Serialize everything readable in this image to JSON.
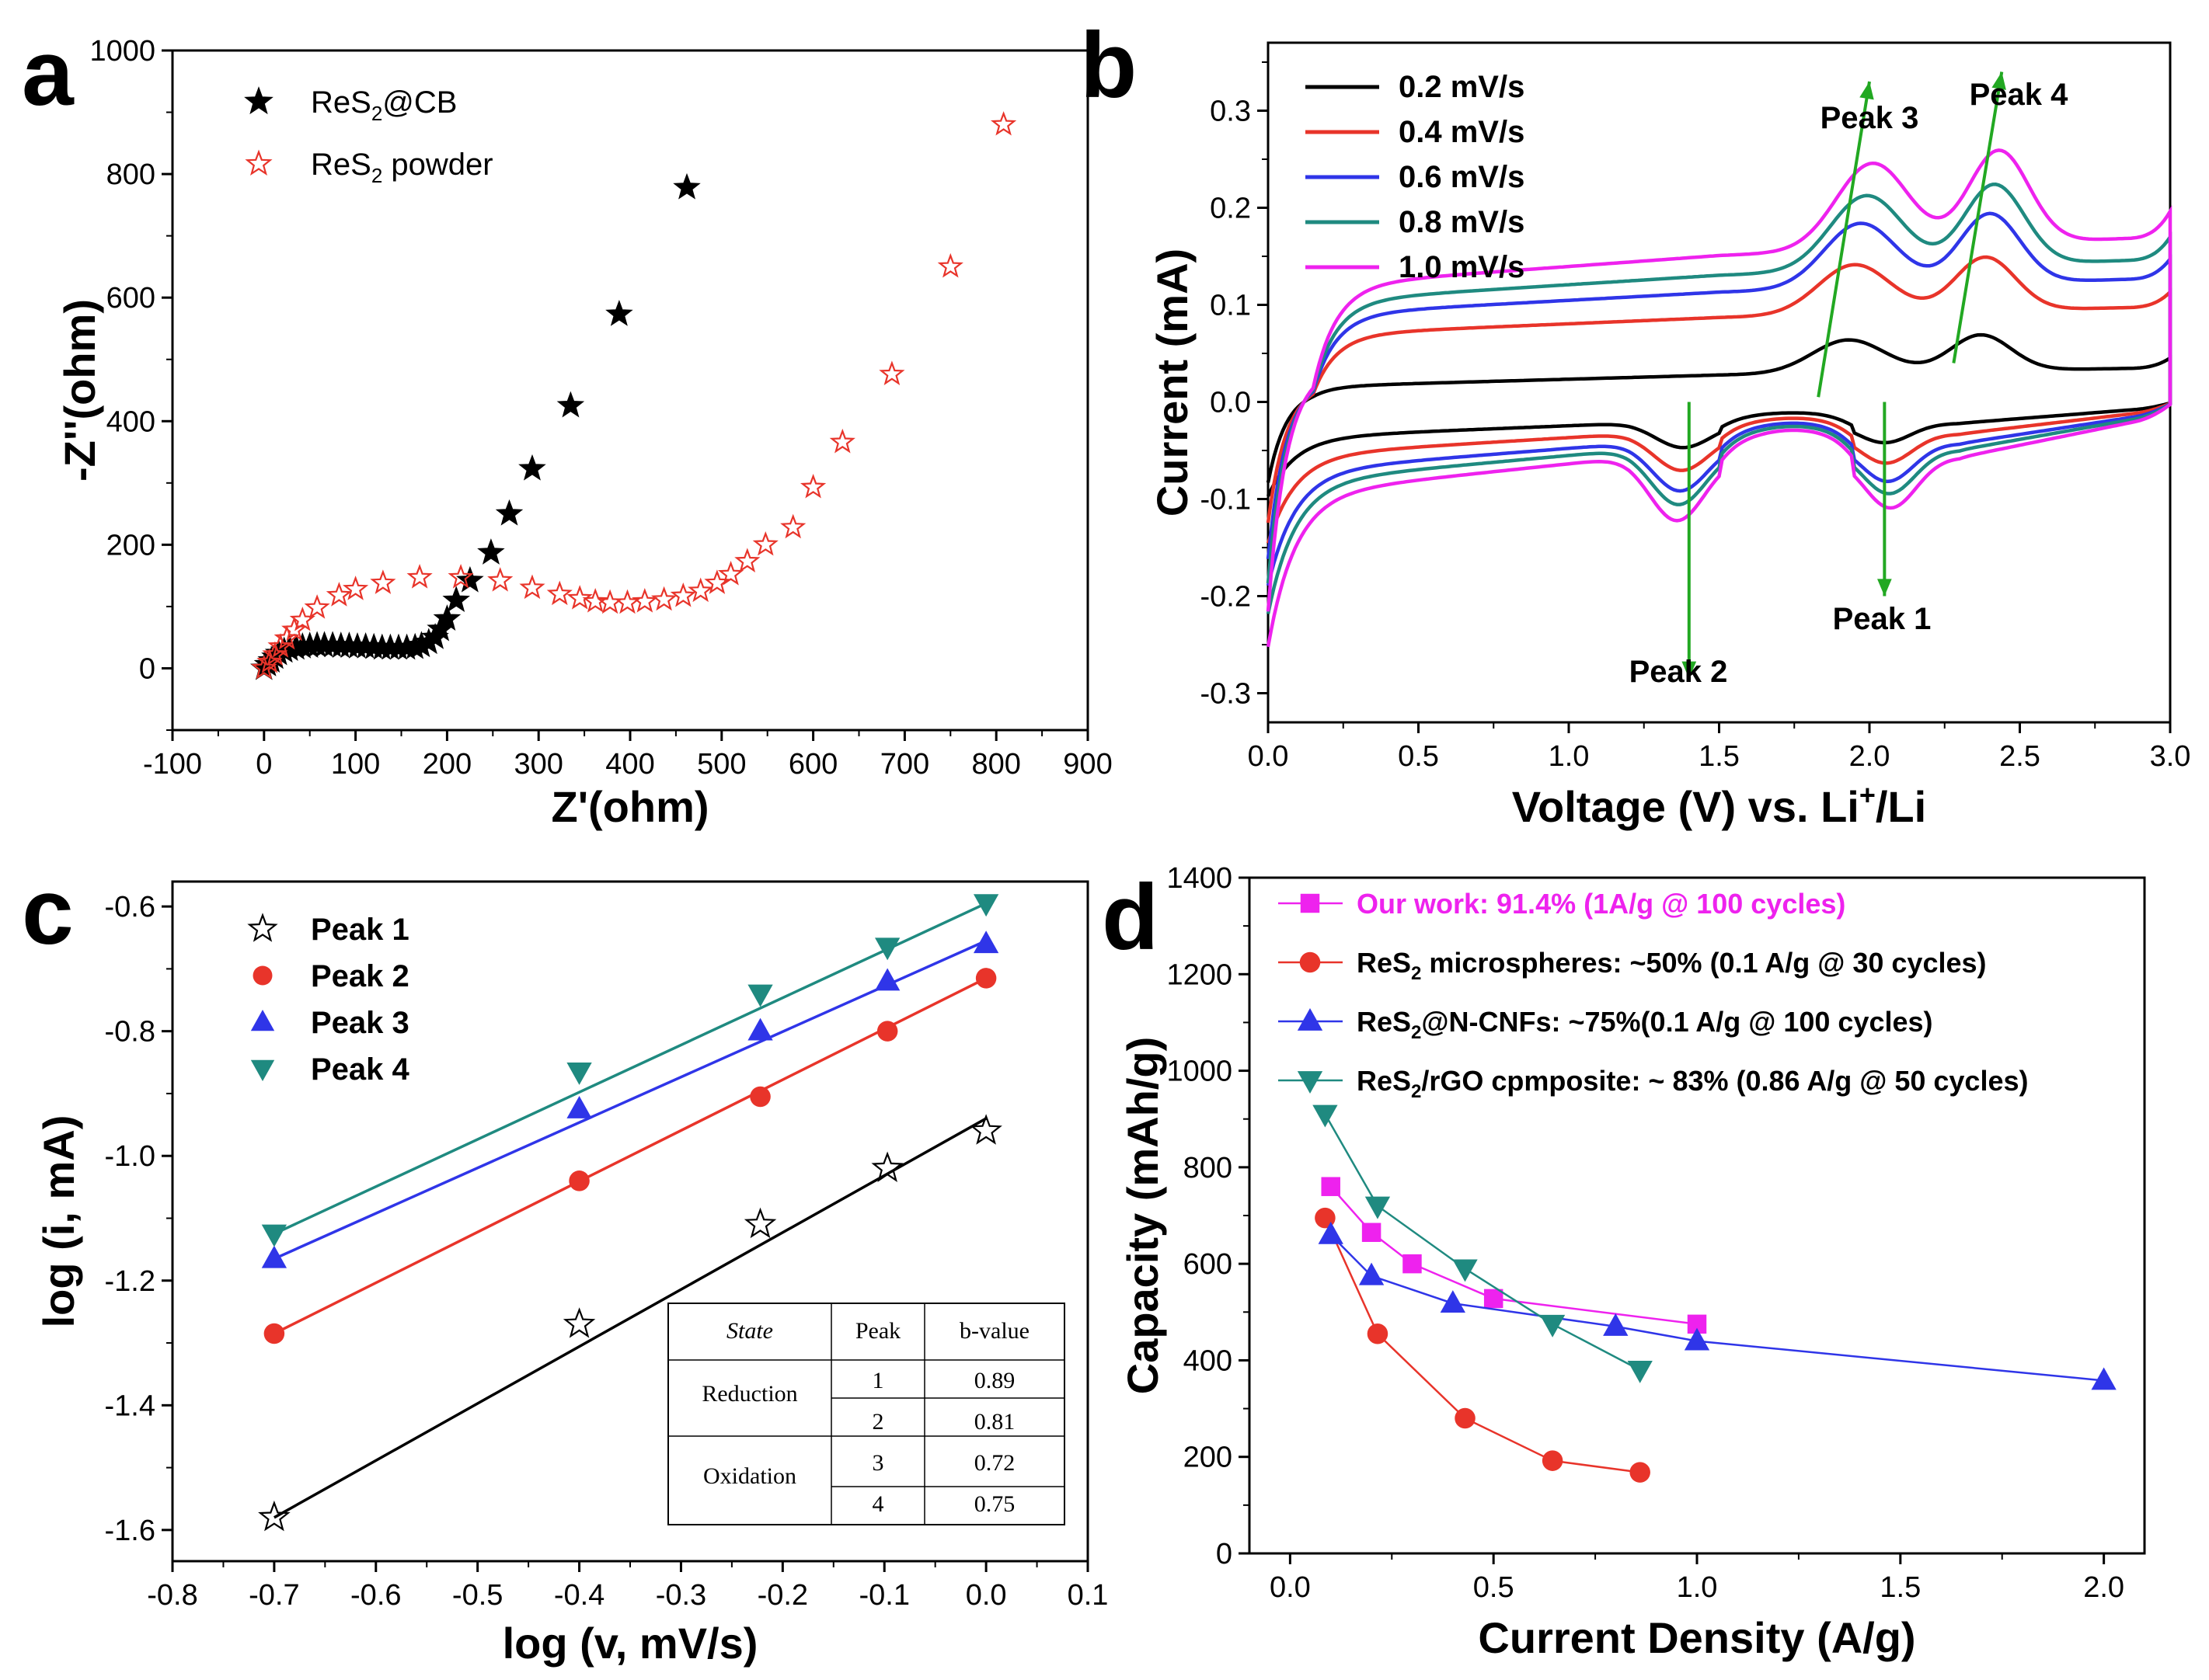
{
  "chart_data": [
    {
      "panel": "a",
      "type": "scatter",
      "xlabel": "Z'(ohm)",
      "ylabel": "-Z''(ohm)",
      "xlim": [
        -100,
        900
      ],
      "ylim": [
        -100,
        1000
      ],
      "xticks": [
        -100,
        0,
        100,
        200,
        300,
        400,
        500,
        600,
        700,
        800,
        900
      ],
      "yticks": [
        0,
        200,
        400,
        600,
        800,
        1000
      ],
      "series": [
        {
          "name": "ReS2@CB",
          "legend_main": "ReS",
          "legend_sub": "2",
          "legend_rest": "@CB",
          "color": "#000000",
          "marker": "filled-star",
          "x": [
            0,
            4,
            8,
            12,
            16,
            22,
            28,
            35,
            42,
            50,
            58,
            66,
            75,
            84,
            93,
            102,
            111,
            120,
            129,
            138,
            147,
            156,
            165,
            172,
            180,
            187,
            193,
            200,
            210,
            225,
            248,
            268,
            293,
            335,
            388,
            462
          ],
          "y": [
            0,
            6,
            12,
            18,
            24,
            28,
            31,
            33,
            35,
            36,
            37,
            37,
            37,
            36,
            36,
            35,
            35,
            34,
            33,
            33,
            33,
            33,
            34,
            37,
            42,
            50,
            63,
            80,
            110,
            142,
            187,
            250,
            323,
            425,
            573,
            778
          ]
        },
        {
          "name": "ReS2 powder",
          "legend_main": "ReS",
          "legend_sub": "2",
          "legend_rest": " powder",
          "color": "#e8342a",
          "marker": "open-star",
          "x": [
            0,
            6,
            12,
            18,
            25,
            33,
            42,
            58,
            82,
            100,
            130,
            170,
            215,
            258,
            293,
            323,
            345,
            362,
            378,
            397,
            416,
            437,
            458,
            477,
            495,
            510,
            528,
            548,
            578,
            600,
            632,
            686,
            750,
            808
          ],
          "y": [
            0,
            10,
            22,
            35,
            48,
            62,
            78,
            98,
            118,
            128,
            138,
            147,
            147,
            142,
            130,
            120,
            113,
            108,
            106,
            106,
            108,
            111,
            117,
            125,
            138,
            152,
            173,
            200,
            228,
            293,
            366,
            476,
            650,
            880
          ]
        }
      ]
    },
    {
      "panel": "b",
      "type": "line",
      "xlabel": "Voltage (V) vs. Li",
      "xlabel_sup": "+",
      "xlabel_tail": "/Li",
      "ylabel": "Current (mA)",
      "xlim": [
        0,
        3
      ],
      "ylim": [
        -0.33,
        0.37
      ],
      "xticks": [
        0.0,
        0.5,
        1.0,
        1.5,
        2.0,
        2.5,
        3.0
      ],
      "yticks": [
        -0.3,
        -0.2,
        -0.1,
        0.0,
        0.1,
        0.2,
        0.3
      ],
      "series": [
        {
          "name": "0.2 mV/s",
          "color": "#000000",
          "scale": 1.0,
          "base": 0.015,
          "ox": 0.07,
          "rd": 0.018,
          "rl": 0.07,
          "red": 0.045,
          "shape": [
            [
              0.0,
              -0.09
            ],
            [
              0.03,
              -0.035
            ],
            [
              0.1,
              -0.015
            ],
            [
              0.2,
              0.0
            ],
            [
              0.25,
              0.012
            ]
          ]
        },
        {
          "name": "0.4 mV/s",
          "color": "#e8342a",
          "scale": 1.5
        },
        {
          "name": "0.6 mV/s",
          "color": "#2f35e8",
          "scale": 1.95
        },
        {
          "name": "0.8 mV/s",
          "color": "#1f8a80",
          "scale": 2.25
        },
        {
          "name": "1.0 mV/s",
          "color": "#ee22ee",
          "scale": 2.6
        }
      ],
      "annotations": [
        "Peak 1",
        "Peak 2",
        "Peak 3",
        "Peak 4"
      ]
    },
    {
      "panel": "c",
      "type": "scatter",
      "xlabel": "log (v, mV/s)",
      "ylabel": "log (i, mA)",
      "xlim": [
        -0.8,
        0.1
      ],
      "ylim": [
        -1.65,
        -0.56
      ],
      "xticks": [
        -0.8,
        -0.7,
        -0.6,
        -0.5,
        -0.4,
        -0.3,
        -0.2,
        -0.1,
        0.0,
        0.1
      ],
      "yticks": [
        -1.6,
        -1.4,
        -1.2,
        -1.0,
        -0.8,
        -0.6
      ],
      "x": [
        -0.7,
        -0.4,
        -0.222,
        -0.097,
        0.0
      ],
      "series": [
        {
          "name": "Peak 1",
          "color": "#000000",
          "marker": "open-star",
          "values": [
            -1.58,
            -1.27,
            -1.11,
            -1.02,
            -0.96
          ],
          "fit": [
            -1.58,
            -0.94
          ]
        },
        {
          "name": "Peak 2",
          "color": "#e8342a",
          "marker": "circle",
          "values": [
            -1.285,
            -1.04,
            -0.905,
            -0.8,
            -0.715
          ],
          "fit": [
            -1.285,
            -0.715
          ]
        },
        {
          "name": "Peak 3",
          "color": "#2f35e8",
          "marker": "triangle-up",
          "values": [
            -1.165,
            -0.925,
            -0.8,
            -0.72,
            -0.66
          ],
          "fit": [
            -1.165,
            -0.655
          ]
        },
        {
          "name": "Peak 4",
          "color": "#1f8a80",
          "marker": "triangle-down",
          "values": [
            -1.125,
            -0.865,
            -0.74,
            -0.665,
            -0.595
          ],
          "fit": [
            -1.125,
            -0.595
          ]
        }
      ],
      "table": {
        "headers": [
          "State",
          "Peak",
          "b-value"
        ],
        "groups": [
          {
            "state": "Reduction",
            "rows": [
              [
                "1",
                "0.89"
              ],
              [
                "2",
                "0.81"
              ]
            ]
          },
          {
            "state": "Oxidation",
            "rows": [
              [
                "3",
                "0.72"
              ],
              [
                "4",
                "0.75"
              ]
            ]
          }
        ]
      }
    },
    {
      "panel": "d",
      "type": "line",
      "xlabel": "Current Density (A/g)",
      "ylabel": "Capacity (mAh/g)",
      "xlim": [
        -0.1,
        2.1
      ],
      "ylim": [
        0,
        1400
      ],
      "xticks": [
        0.0,
        0.5,
        1.0,
        1.5,
        2.0
      ],
      "yticks": [
        0,
        200,
        400,
        600,
        800,
        1000,
        1200,
        1400
      ],
      "series": [
        {
          "name": "Our work: 91.4% (1A/g @ 100 cycles)",
          "legend_main": "Our work: 91.4% (1A/g @ 100 cycles)",
          "legend_sub": "",
          "legend_rest": "",
          "color": "#ee22ee",
          "text_color": "#ee22ee",
          "marker": "square",
          "x": [
            0.1,
            0.2,
            0.3,
            0.5,
            1.0
          ],
          "values": [
            760,
            665,
            600,
            528,
            475
          ]
        },
        {
          "name": "ReS2 microspheres: ~50% (0.1 A/g @ 30 cycles)",
          "legend_main": "ReS",
          "legend_sub": "2",
          "legend_rest": " microspheres: ~50% (0.1 A/g @ 30 cycles)",
          "color": "#e8342a",
          "text_color": "#000000",
          "marker": "circle",
          "x": [
            0.086,
            0.215,
            0.43,
            0.645,
            0.86
          ],
          "values": [
            695,
            455,
            280,
            192,
            168
          ]
        },
        {
          "name": "ReS2@N-CNFs: ~75%(0.1 A/g @ 100 cycles)",
          "legend_main": "ReS",
          "legend_sub": "2",
          "legend_rest": "@N-CNFs: ~75%(0.1 A/g @ 100 cycles)",
          "color": "#2f35e8",
          "text_color": "#000000",
          "marker": "triangle-up",
          "x": [
            0.1,
            0.2,
            0.4,
            0.8,
            1.0,
            2.0
          ],
          "values": [
            660,
            575,
            518,
            470,
            440,
            358
          ]
        },
        {
          "name": "ReS2/rGO cpmposite: ~ 83% (0.86 A/g @ 50 cycles)",
          "legend_main": "ReS",
          "legend_sub": "2",
          "legend_rest": "/rGO cpmposite: ~ 83% (0.86 A/g @ 50 cycles)",
          "color": "#1f8a80",
          "text_color": "#000000",
          "marker": "triangle-down",
          "x": [
            0.086,
            0.215,
            0.43,
            0.645,
            0.86
          ],
          "values": [
            910,
            720,
            590,
            475,
            380
          ]
        }
      ]
    }
  ],
  "panel_labels": [
    "a",
    "b",
    "c",
    "d"
  ]
}
